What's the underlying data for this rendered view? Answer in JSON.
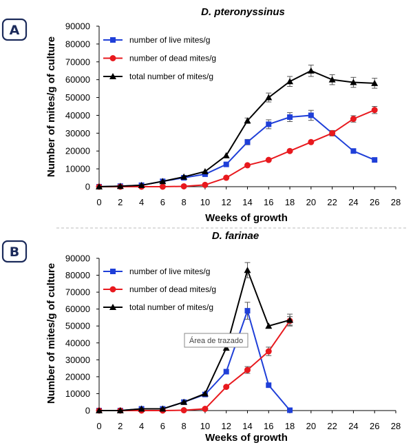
{
  "chart_data": [
    {
      "type": "line",
      "panel_label": "A",
      "title": "D. pteronyssinus",
      "xlabel": "Weeks of growth",
      "ylabel": "Number of mites/g of culture",
      "xlim": [
        0,
        28
      ],
      "ylim": [
        0,
        90000
      ],
      "x_ticks": [
        0,
        2,
        4,
        6,
        8,
        10,
        12,
        14,
        16,
        18,
        20,
        22,
        24,
        26,
        28
      ],
      "y_ticks": [
        0,
        10000,
        20000,
        30000,
        40000,
        50000,
        60000,
        70000,
        80000,
        90000
      ],
      "grid": false,
      "legend_position": "top-left",
      "series": [
        {
          "name": "number of live mites/g",
          "color": "#1f3fd8",
          "marker": "square",
          "x": [
            0,
            2,
            4,
            6,
            8,
            10,
            12,
            14,
            16,
            18,
            20,
            22,
            24,
            26
          ],
          "y": [
            0,
            300,
            800,
            3000,
            5000,
            7000,
            12500,
            25000,
            35000,
            39000,
            40000,
            30000,
            20000,
            15000
          ],
          "error": [
            0,
            0,
            0,
            0,
            0,
            0,
            0,
            1500,
            2500,
            2500,
            2800,
            1500,
            0,
            0
          ]
        },
        {
          "name": "number of dead mites/g",
          "color": "#e8191e",
          "marker": "circle",
          "x": [
            0,
            2,
            4,
            6,
            8,
            10,
            12,
            14,
            16,
            18,
            20,
            22,
            24,
            26
          ],
          "y": [
            0,
            0,
            0,
            0,
            200,
            1000,
            5000,
            12000,
            15000,
            20000,
            25000,
            30000,
            38000,
            43000
          ],
          "error": [
            0,
            0,
            0,
            0,
            0,
            0,
            0,
            0,
            0,
            0,
            0,
            1500,
            1800,
            2000
          ]
        },
        {
          "name": "total number of mites/g",
          "color": "#000000",
          "marker": "triangle",
          "x": [
            0,
            2,
            4,
            6,
            8,
            10,
            12,
            14,
            16,
            18,
            20,
            22,
            24,
            26
          ],
          "y": [
            0,
            300,
            800,
            3000,
            5500,
            8500,
            17500,
            37000,
            50000,
            59000,
            65000,
            60000,
            58500,
            58000
          ],
          "error": [
            0,
            0,
            0,
            0,
            0,
            0,
            0,
            1500,
            2500,
            2800,
            3200,
            2800,
            2800,
            2800
          ]
        }
      ]
    },
    {
      "type": "line",
      "panel_label": "B",
      "title": "D. farinae",
      "xlabel": "Weeks of growth",
      "ylabel": "Number of mites/g of culture",
      "xlim": [
        0,
        28
      ],
      "ylim": [
        0,
        90000
      ],
      "x_ticks": [
        0,
        2,
        4,
        6,
        8,
        10,
        12,
        14,
        16,
        18,
        20,
        22,
        24,
        26,
        28
      ],
      "y_ticks": [
        0,
        10000,
        20000,
        30000,
        40000,
        50000,
        60000,
        70000,
        80000,
        90000
      ],
      "grid": false,
      "legend_position": "top-left",
      "annotation": "Área de trazado",
      "series": [
        {
          "name": "number of live mites/g",
          "color": "#1f3fd8",
          "marker": "square",
          "x": [
            0,
            2,
            4,
            6,
            8,
            10,
            12,
            14,
            16,
            18
          ],
          "y": [
            0,
            0,
            1000,
            1000,
            5000,
            9500,
            23000,
            59000,
            15000,
            200
          ],
          "error": [
            0,
            0,
            0,
            0,
            0,
            0,
            0,
            5000,
            0,
            0
          ]
        },
        {
          "name": "number of dead mites/g",
          "color": "#e8191e",
          "marker": "circle",
          "x": [
            0,
            2,
            4,
            6,
            8,
            10,
            12,
            14,
            16,
            18
          ],
          "y": [
            0,
            0,
            0,
            0,
            200,
            1000,
            14000,
            24000,
            35000,
            53000
          ],
          "error": [
            0,
            0,
            0,
            0,
            0,
            0,
            0,
            2000,
            2500,
            2500
          ]
        },
        {
          "name": "total number of mites/g",
          "color": "#000000",
          "marker": "triangle",
          "x": [
            0,
            2,
            4,
            6,
            8,
            10,
            12,
            14,
            16,
            18
          ],
          "y": [
            0,
            0,
            1000,
            1000,
            5000,
            10000,
            37000,
            83000,
            50000,
            53500
          ],
          "error": [
            0,
            0,
            0,
            0,
            0,
            0,
            0,
            4500,
            0,
            3500
          ]
        }
      ]
    }
  ]
}
